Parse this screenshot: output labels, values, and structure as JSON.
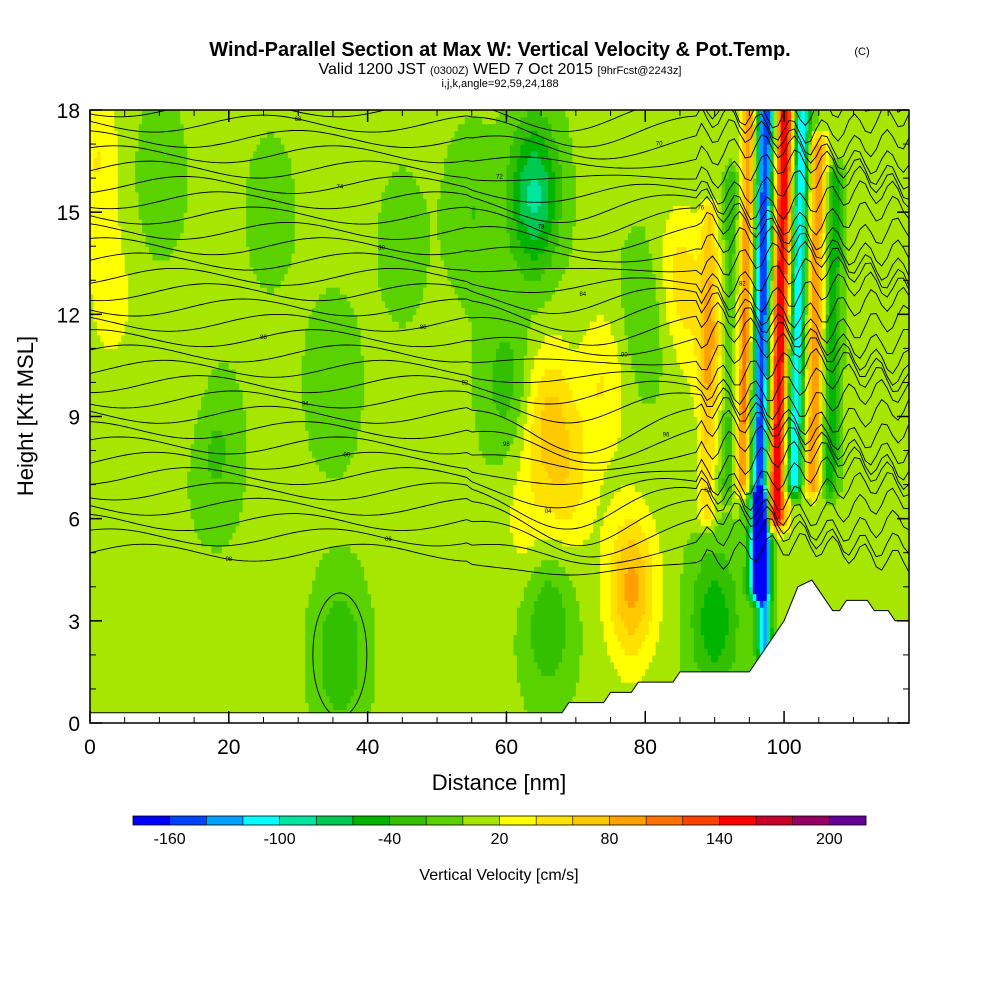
{
  "chart_data": {
    "type": "heatmap",
    "title": "Wind-Parallel Section at Max W: Vertical Velocity & Pot.Temp.",
    "title_mark": "(C)",
    "subtitle": {
      "prefix": "Valid 1200 JST",
      "utc": "(0300Z)",
      "date": "WED 7 Oct 2015",
      "fcst": "[9hrFcst@2243z]"
    },
    "section_info": "i,j,k,angle=92,59,24,188",
    "xlabel": "Distance [nm]",
    "ylabel": "Height [Kft MSL]",
    "xlim": [
      0,
      118
    ],
    "ylim": [
      0,
      18
    ],
    "x_ticks": [
      0,
      20,
      40,
      60,
      80,
      100
    ],
    "y_ticks": [
      0,
      3,
      6,
      9,
      12,
      15,
      18
    ],
    "colorbar": {
      "label": "Vertical Velocity [cm/s]",
      "tick_labels": [
        "-160",
        "-100",
        "-40",
        "20",
        "80",
        "140",
        "200"
      ],
      "levels": [
        -180,
        -160,
        -140,
        -120,
        -100,
        -80,
        -60,
        -40,
        -20,
        0,
        20,
        40,
        60,
        80,
        100,
        120,
        140,
        160,
        180,
        200,
        220
      ],
      "colors": [
        "#0000ff",
        "#0044ff",
        "#00a0ff",
        "#00ffff",
        "#00e6a0",
        "#00c850",
        "#00b400",
        "#32c000",
        "#5ad200",
        "#a6e600",
        "#ffff00",
        "#ffe100",
        "#ffc800",
        "#ffa000",
        "#ff7000",
        "#ff4000",
        "#ff0000",
        "#c80028",
        "#960064",
        "#640096"
      ]
    },
    "series": [
      {
        "name": "Vertical Velocity",
        "field": "w",
        "background_value": 5,
        "features": [
          {
            "x": 1,
            "z": 16.5,
            "w": 35
          },
          {
            "x": 3,
            "z": 12.5,
            "w": 25
          },
          {
            "x": 14,
            "z": 10,
            "w": 15
          },
          {
            "x": 18,
            "z": 8,
            "w": -30
          },
          {
            "x": 10,
            "z": 16,
            "w": -20
          },
          {
            "x": 26,
            "z": 15,
            "w": -15
          },
          {
            "x": 36,
            "z": 2,
            "w": -45
          },
          {
            "x": 35,
            "z": 10,
            "w": -25
          },
          {
            "x": 45,
            "z": 14,
            "w": -15
          },
          {
            "x": 55,
            "z": 15,
            "w": -25
          },
          {
            "x": 60,
            "z": 10,
            "w": -35
          },
          {
            "x": 64,
            "z": 15.5,
            "w": -90
          },
          {
            "x": 66,
            "z": 3,
            "w": -45
          },
          {
            "x": 63,
            "z": 6,
            "w": 25
          },
          {
            "x": 66,
            "z": 9,
            "w": 55
          },
          {
            "x": 69,
            "z": 7,
            "w": 40
          },
          {
            "x": 74,
            "z": 10,
            "w": 35
          },
          {
            "x": 78,
            "z": 4,
            "w": 80
          },
          {
            "x": 80,
            "z": 12,
            "w": -30
          },
          {
            "x": 85,
            "z": 13,
            "w": 45
          },
          {
            "x": 90,
            "z": 3,
            "w": -60
          },
          {
            "x": 90,
            "z": 11,
            "w": 35
          }
        ],
        "bands": [
          {
            "x_at_base": 96,
            "x_at_top": 97.5,
            "z_min": 4,
            "z_max": 18,
            "w": -175,
            "width": 1.4
          },
          {
            "x_at_base": 93.5,
            "x_at_top": 95,
            "z_min": 7,
            "z_max": 18,
            "w": 100,
            "width": 1.0
          },
          {
            "x_at_base": 97.5,
            "x_at_top": 95,
            "z_min": 0.5,
            "z_max": 6.5,
            "w": -130,
            "width": 1.1
          },
          {
            "x_at_base": 98,
            "x_at_top": 100.2,
            "z_min": 6,
            "z_max": 18,
            "w": 165,
            "width": 1.6
          },
          {
            "x_at_base": 100.5,
            "x_at_top": 102.5,
            "z_min": 7,
            "z_max": 18,
            "w": -140,
            "width": 1.3
          },
          {
            "x_at_base": 103.5,
            "x_at_top": 105,
            "z_min": 7,
            "z_max": 17,
            "w": 95,
            "width": 1.3
          },
          {
            "x_at_base": 106,
            "x_at_top": 107.5,
            "z_min": 7,
            "z_max": 16,
            "w": -60,
            "width": 1.2
          },
          {
            "x_at_base": 91.5,
            "x_at_top": 92.5,
            "z_min": 7,
            "z_max": 16,
            "w": -40,
            "width": 1.0
          },
          {
            "x_at_base": 88.5,
            "x_at_top": 89.5,
            "z_min": 6,
            "z_max": 15,
            "w": 50,
            "width": 1.2
          }
        ]
      },
      {
        "name": "Potential Temperature",
        "field": "theta",
        "contour_labels": [
          "08",
          "06",
          "04",
          "02",
          "00",
          "98",
          "96",
          "94",
          "92",
          "90",
          "88",
          "86",
          "84",
          "82",
          "80",
          "78",
          "76",
          "74",
          "72",
          "70",
          "68"
        ]
      }
    ],
    "terrain": [
      [
        0,
        0.3
      ],
      [
        68,
        0.3
      ],
      [
        69,
        0.6
      ],
      [
        74,
        0.6
      ],
      [
        75,
        0.9
      ],
      [
        78,
        0.9
      ],
      [
        79,
        1.2
      ],
      [
        84,
        1.2
      ],
      [
        85,
        1.5
      ],
      [
        95,
        1.5
      ],
      [
        96,
        1.8
      ],
      [
        97,
        2.1
      ],
      [
        98,
        2.4
      ],
      [
        99,
        2.7
      ],
      [
        100,
        3.0
      ],
      [
        101,
        3.5
      ],
      [
        102,
        4.0
      ],
      [
        104,
        4.2
      ],
      [
        105,
        3.9
      ],
      [
        106,
        3.6
      ],
      [
        107,
        3.3
      ],
      [
        108,
        3.3
      ],
      [
        109,
        3.6
      ],
      [
        112,
        3.6
      ],
      [
        113,
        3.3
      ],
      [
        115,
        3.3
      ],
      [
        116,
        3.0
      ],
      [
        118,
        3.0
      ]
    ]
  }
}
